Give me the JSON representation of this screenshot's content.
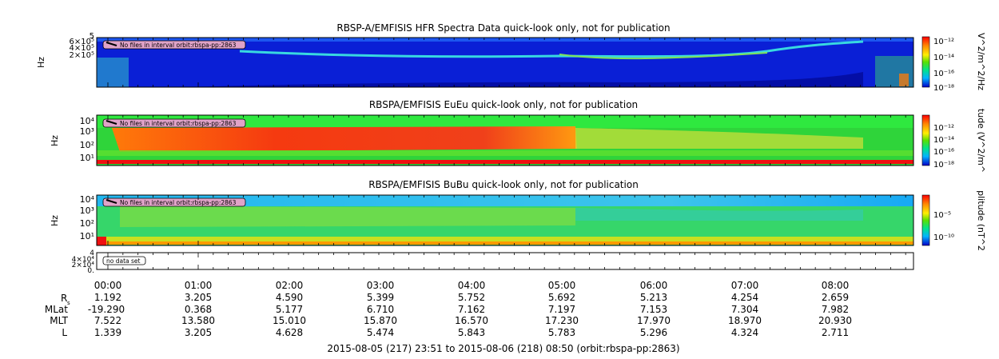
{
  "chart_data": [
    {
      "type": "heatmap",
      "title": "RBSP-A/EMFISIS  HFR Spectra Data quick-look only, not for publication",
      "ylabel": "Hz",
      "ytick_labels": [
        "5",
        "6×10⁵",
        "4×10⁵",
        "2×10⁵"
      ],
      "notice": "No files in interval orbit:rbspa-pp:2863",
      "colorbar_label": "V^2/m^2/Hz",
      "colorbar_ticks": [
        "10⁻¹²",
        "10⁻¹⁴",
        "10⁻¹⁶",
        "10⁻¹⁸"
      ],
      "colors": {
        "background": "#0a1fd6",
        "band": "#25d1e8",
        "low": "#00007f"
      }
    },
    {
      "type": "heatmap",
      "title": "RBSPA/EMFISIS  EuEu quick-look only, not for publication",
      "ylabel": "Hz",
      "ytick_labels": [
        "10⁴",
        "10³",
        "10²",
        "10¹"
      ],
      "notice": "No files in interval orbit:rbspa-pp:2863",
      "colorbar_label": "tude (V^2/m^",
      "colorbar_ticks": [
        "10⁻¹²",
        "10⁻¹⁴",
        "10⁻¹⁶",
        "10⁻¹⁸"
      ],
      "colors": {
        "background": "#2fd43a",
        "hot": "#f23a16",
        "top": "#2fe83f"
      }
    },
    {
      "type": "heatmap",
      "title": "RBSPA/EMFISIS  BuBu quick-look only, not for publication",
      "ylabel": "Hz",
      "ytick_labels": [
        "10⁴",
        "10³",
        "10²",
        "10¹"
      ],
      "notice": "No files in interval orbit:rbspa-pp:2863",
      "colorbar_label": "plitude (nT^2",
      "colorbar_ticks": [
        "10⁻⁵",
        "10⁻¹⁰"
      ],
      "colors": {
        "background": "#36d66a",
        "top": "#2ab6ea",
        "band": "#8fde3a"
      }
    },
    {
      "type": "line",
      "ytick_labels": [
        "4",
        "4×10⁴",
        "2×10⁴",
        "0."
      ],
      "notice": "no data set"
    }
  ],
  "time_axis": {
    "ticks": [
      "00:00",
      "01:00",
      "02:00",
      "03:00",
      "04:00",
      "05:00",
      "06:00",
      "07:00",
      "08:00"
    ],
    "rows": [
      {
        "label": "R",
        "sub": "s",
        "values": [
          "1.192",
          "3.205",
          "4.590",
          "5.399",
          "5.752",
          "5.692",
          "5.213",
          "4.254",
          "2.659"
        ]
      },
      {
        "label": "MLat",
        "sub": "",
        "values": [
          "-19.290",
          "0.368",
          "5.177",
          "6.710",
          "7.162",
          "7.197",
          "7.153",
          "7.304",
          "7.982"
        ]
      },
      {
        "label": "MLT",
        "sub": "",
        "values": [
          "7.522",
          "13.580",
          "15.010",
          "15.870",
          "16.570",
          "17.230",
          "17.970",
          "18.970",
          "20.930"
        ]
      },
      {
        "label": "L",
        "sub": "",
        "values": [
          "1.339",
          "3.205",
          "4.628",
          "5.474",
          "5.843",
          "5.783",
          "5.296",
          "4.324",
          "2.711"
        ]
      }
    ],
    "footer": "2015-08-05 (217) 23:51 to 2015-08-06 (218) 08:50 (orbit:rbspa-pp:2863)"
  }
}
